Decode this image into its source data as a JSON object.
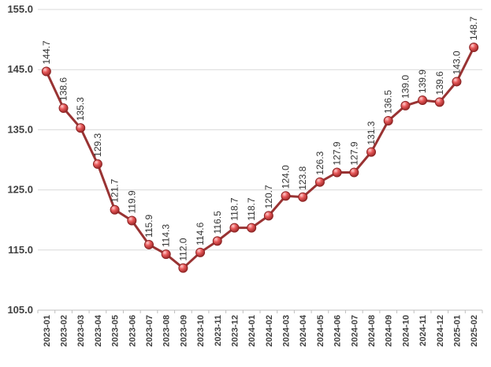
{
  "chart_data": {
    "type": "line",
    "title": "",
    "xlabel": "",
    "ylabel": "",
    "ylim": [
      105.0,
      155.0
    ],
    "yticks": [
      "105.0",
      "115.0",
      "125.0",
      "135.0",
      "145.0",
      "155.0"
    ],
    "ytick_values": [
      105,
      115,
      125,
      135,
      145,
      155
    ],
    "grid": "horizontal",
    "legend": "none",
    "categories": [
      "2023-01",
      "2023-02",
      "2023-03",
      "2023-04",
      "2023-05",
      "2023-06",
      "2023-07",
      "2023-08",
      "2023-09",
      "2023-10",
      "2023-11",
      "2023-12",
      "2024-01",
      "2024-02",
      "2024-03",
      "2024-04",
      "2024-05",
      "2024-06",
      "2024-07",
      "2024-08",
      "2024-09",
      "2024-10",
      "2024-11",
      "2024-12",
      "2025-01",
      "2025-02"
    ],
    "values": [
      144.7,
      138.6,
      135.3,
      129.3,
      121.7,
      119.9,
      115.9,
      114.3,
      112.0,
      114.6,
      116.5,
      118.7,
      118.7,
      120.7,
      124.0,
      123.8,
      126.3,
      127.9,
      127.9,
      131.3,
      136.5,
      139.0,
      139.9,
      139.6,
      143.0,
      148.7
    ],
    "labels": [
      "144.7",
      "138.6",
      "135.3",
      "129.3",
      "121.7",
      "119.9",
      "115.9",
      "114.3",
      "112.0",
      "114.6",
      "116.5",
      "118.7",
      "118.7",
      "120.7",
      "124.0",
      "123.8",
      "126.3",
      "127.9",
      "127.9",
      "131.3",
      "136.5",
      "139.0",
      "139.9",
      "139.6",
      "143.0",
      "148.7"
    ],
    "colors": {
      "line": "#993333",
      "marker": "#e05a5a",
      "marker_edge": "#8b2323",
      "grid": "#d9d9d9"
    }
  }
}
